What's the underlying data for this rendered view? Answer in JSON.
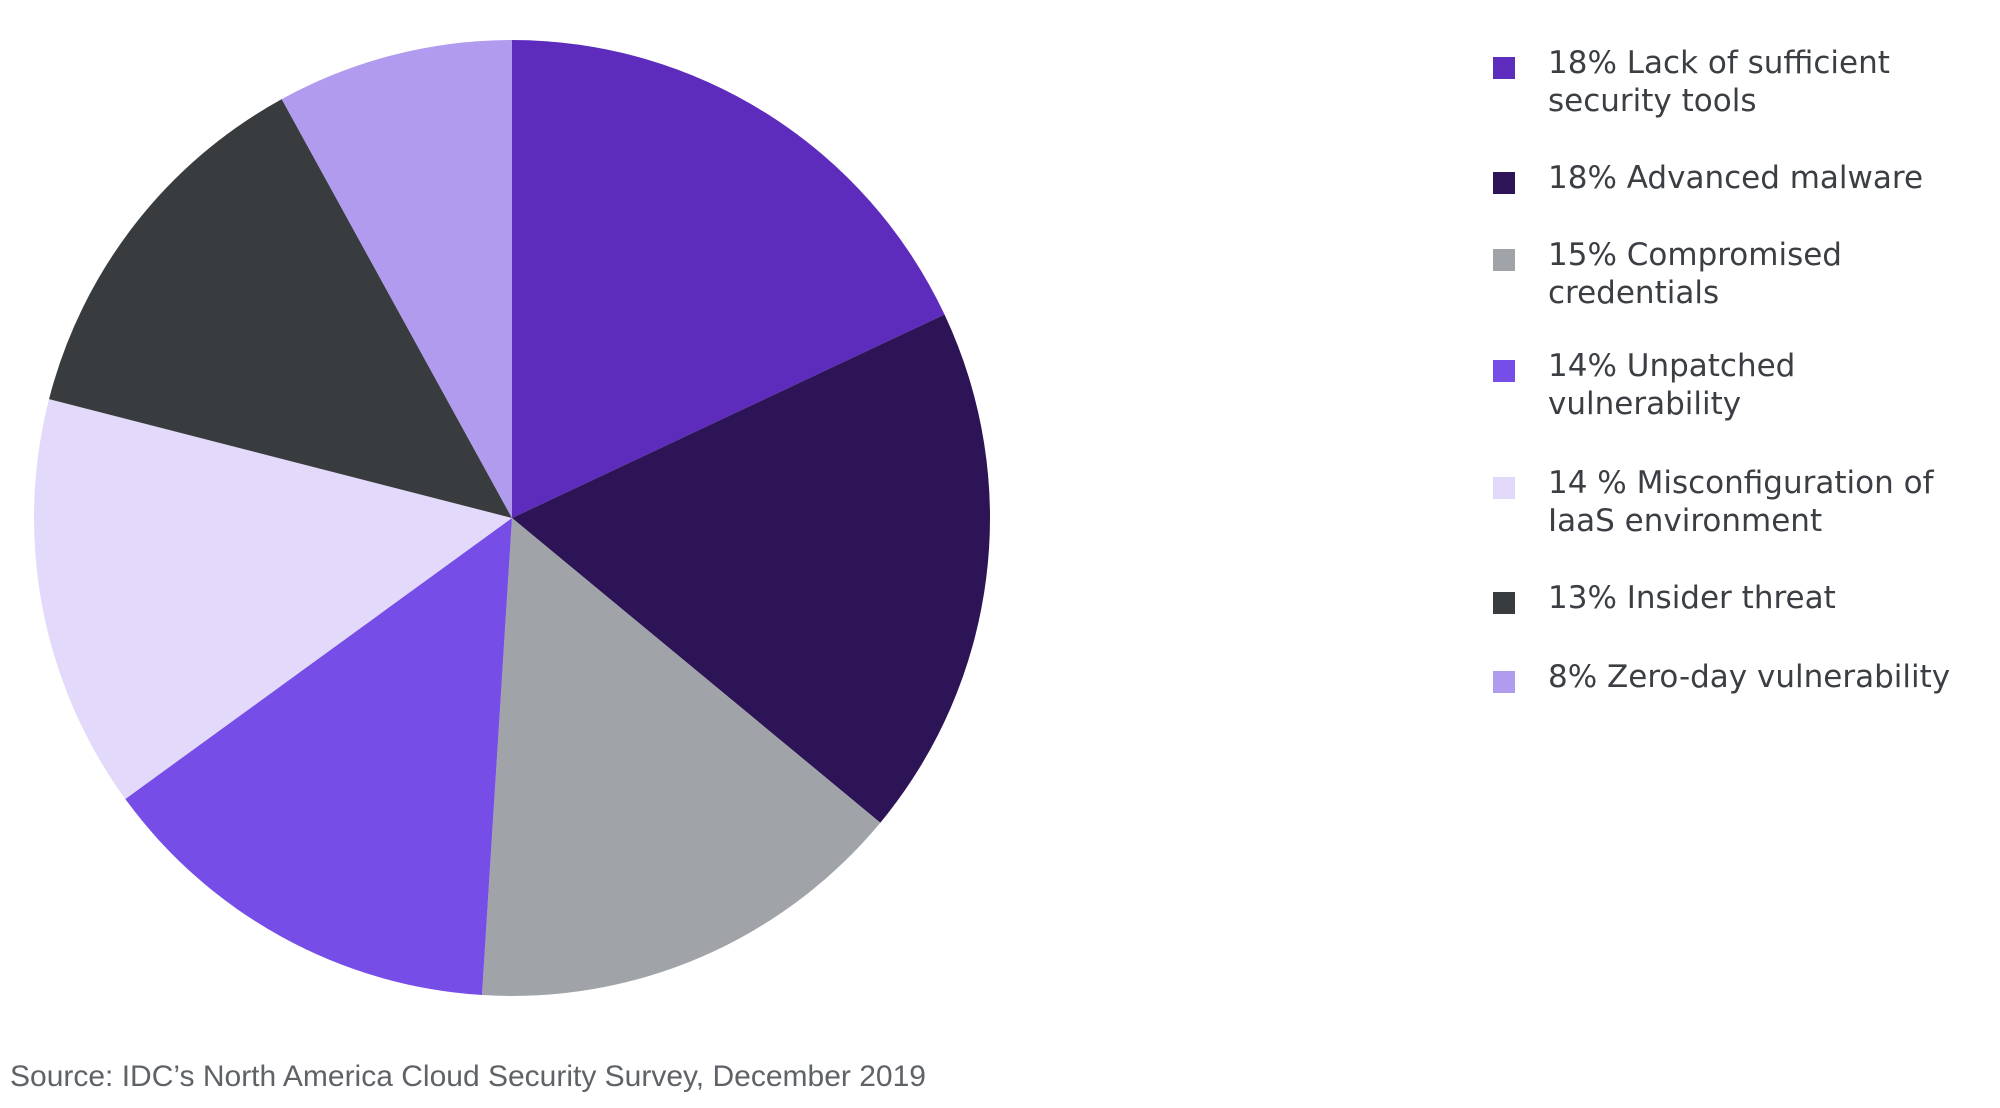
{
  "chart_data": {
    "type": "pie",
    "title": "",
    "start": "top",
    "direction": "clockwise",
    "legend_position": "right",
    "slices": [
      {
        "label": "18% Lack of sufficient security tools",
        "value": 18,
        "color": "#5e2cbd"
      },
      {
        "label": "18% Advanced malware",
        "value": 18,
        "color": "#2d1456"
      },
      {
        "label": "15% Compromised credentials",
        "value": 15,
        "color": "#a0a4a8"
      },
      {
        "label": "14% Unpatched vulnerability",
        "value": 14,
        "color": "#764ee7"
      },
      {
        "label": "14 % Misconfiguration of IaaS environment",
        "value": 14,
        "color": "#e3d9fa"
      },
      {
        "label": "13% Insider threat",
        "value": 13,
        "color": "#393c3f"
      },
      {
        "label": "8% Zero-day vulnerability",
        "value": 8,
        "color": "#b09bef"
      }
    ]
  },
  "source_note": "Source: IDC’s North America Cloud Security Survey, December 2019"
}
